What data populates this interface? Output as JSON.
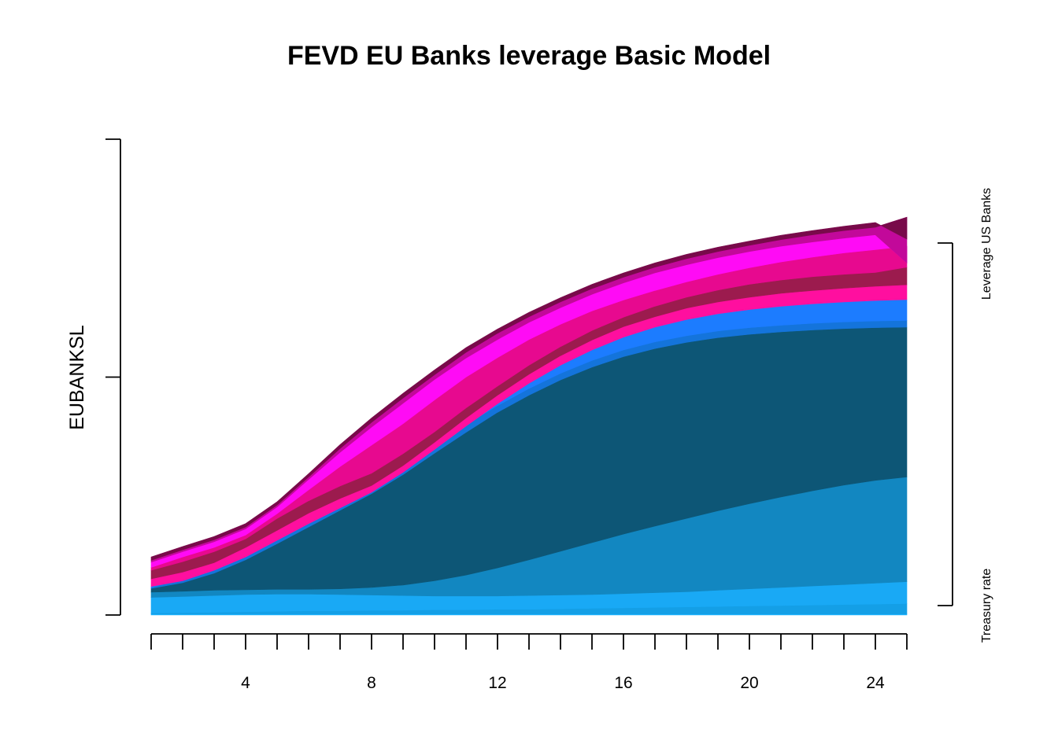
{
  "chart_data": {
    "type": "area",
    "title": "FEVD EU Banks leverage Basic Model",
    "ylabel": "EUBANKSL",
    "xlabel": "",
    "x": [
      1,
      2,
      3,
      4,
      5,
      6,
      7,
      8,
      9,
      10,
      11,
      12,
      13,
      14,
      15,
      16,
      17,
      18,
      19,
      20,
      21,
      22,
      23,
      24,
      25
    ],
    "xticks": [
      4,
      8,
      12,
      16,
      20,
      24
    ],
    "xlim": [
      1,
      25
    ],
    "ylim": [
      0,
      1
    ],
    "grid": false,
    "legend": "none",
    "right_labels": [
      "Leverage US Banks",
      "Treasury rate"
    ],
    "stacked_boundaries": [
      [
        0.002,
        0.002,
        0.002,
        0.002,
        0.002,
        0.002,
        0.002,
        0.002,
        0.002,
        0.002,
        0.002,
        0.002,
        0.002,
        0.002,
        0.002,
        0.002,
        0.002,
        0.002,
        0.002,
        0.002,
        0.002,
        0.002,
        0.002,
        0.002,
        0.002
      ],
      [
        0.004,
        0.005,
        0.006,
        0.007,
        0.008,
        0.009,
        0.009,
        0.01,
        0.01,
        0.011,
        0.011,
        0.012,
        0.012,
        0.013,
        0.014,
        0.015,
        0.016,
        0.017,
        0.018,
        0.019,
        0.02,
        0.021,
        0.022,
        0.023,
        0.024
      ],
      [
        0.037,
        0.039,
        0.041,
        0.043,
        0.044,
        0.044,
        0.043,
        0.042,
        0.041,
        0.04,
        0.04,
        0.04,
        0.041,
        0.042,
        0.043,
        0.045,
        0.047,
        0.049,
        0.052,
        0.055,
        0.058,
        0.061,
        0.064,
        0.067,
        0.07
      ],
      [
        0.048,
        0.05,
        0.052,
        0.053,
        0.054,
        0.054,
        0.055,
        0.058,
        0.063,
        0.072,
        0.084,
        0.099,
        0.116,
        0.134,
        0.152,
        0.17,
        0.187,
        0.203,
        0.219,
        0.234,
        0.248,
        0.261,
        0.273,
        0.283,
        0.29
      ],
      [
        0.056,
        0.068,
        0.088,
        0.116,
        0.15,
        0.185,
        0.22,
        0.255,
        0.295,
        0.34,
        0.384,
        0.426,
        0.462,
        0.494,
        0.521,
        0.543,
        0.56,
        0.573,
        0.583,
        0.59,
        0.595,
        0.599,
        0.602,
        0.604,
        0.605
      ],
      [
        0.058,
        0.075,
        0.1,
        0.13,
        0.165,
        0.2,
        0.235,
        0.27,
        0.31,
        0.355,
        0.4,
        0.44,
        0.476,
        0.508,
        0.535,
        0.557,
        0.574,
        0.587,
        0.597,
        0.604,
        0.609,
        0.613,
        0.616,
        0.618,
        0.619
      ],
      [
        0.06,
        0.072,
        0.094,
        0.122,
        0.157,
        0.192,
        0.225,
        0.258,
        0.3,
        0.348,
        0.397,
        0.444,
        0.487,
        0.525,
        0.557,
        0.584,
        0.605,
        0.621,
        0.633,
        0.642,
        0.649,
        0.654,
        0.658,
        0.661,
        0.663
      ],
      [
        0.076,
        0.09,
        0.11,
        0.142,
        0.178,
        0.214,
        0.245,
        0.272,
        0.314,
        0.363,
        0.414,
        0.462,
        0.506,
        0.545,
        0.578,
        0.606,
        0.627,
        0.645,
        0.658,
        0.668,
        0.676,
        0.682,
        0.687,
        0.691,
        0.694
      ],
      [
        0.094,
        0.112,
        0.133,
        0.16,
        0.203,
        0.24,
        0.271,
        0.298,
        0.339,
        0.385,
        0.435,
        0.481,
        0.525,
        0.564,
        0.598,
        0.626,
        0.649,
        0.668,
        0.683,
        0.695,
        0.704,
        0.711,
        0.716,
        0.72,
        0.731
      ],
      [
        0.1,
        0.122,
        0.142,
        0.168,
        0.213,
        0.263,
        0.312,
        0.357,
        0.402,
        0.452,
        0.5,
        0.541,
        0.579,
        0.611,
        0.639,
        0.662,
        0.682,
        0.7,
        0.716,
        0.73,
        0.742,
        0.752,
        0.761,
        0.768,
        0.775
      ],
      [
        0.111,
        0.133,
        0.154,
        0.181,
        0.227,
        0.285,
        0.342,
        0.395,
        0.445,
        0.495,
        0.54,
        0.579,
        0.615,
        0.646,
        0.674,
        0.698,
        0.719,
        0.736,
        0.751,
        0.764,
        0.775,
        0.784,
        0.792,
        0.799,
        0.74
      ],
      [
        0.115,
        0.137,
        0.158,
        0.185,
        0.231,
        0.29,
        0.35,
        0.405,
        0.456,
        0.505,
        0.552,
        0.592,
        0.627,
        0.658,
        0.686,
        0.71,
        0.731,
        0.749,
        0.764,
        0.777,
        0.789,
        0.799,
        0.808,
        0.815,
        0.836
      ],
      [
        0.122,
        0.144,
        0.165,
        0.192,
        0.238,
        0.297,
        0.358,
        0.414,
        0.466,
        0.515,
        0.562,
        0.601,
        0.636,
        0.667,
        0.695,
        0.719,
        0.74,
        0.758,
        0.773,
        0.786,
        0.798,
        0.808,
        0.817,
        0.825,
        0.79
      ]
    ],
    "band_colors": [
      "#19B3FF",
      "#149FE6",
      "#19A9F5",
      "#1287C1",
      "#0D5676",
      "#1474DB",
      "#1C7CFF",
      "#FF0F9F",
      "#9C1B4E",
      "#E7098F",
      "#FF0BF5",
      "#C2099A",
      "#780A4A"
    ]
  }
}
